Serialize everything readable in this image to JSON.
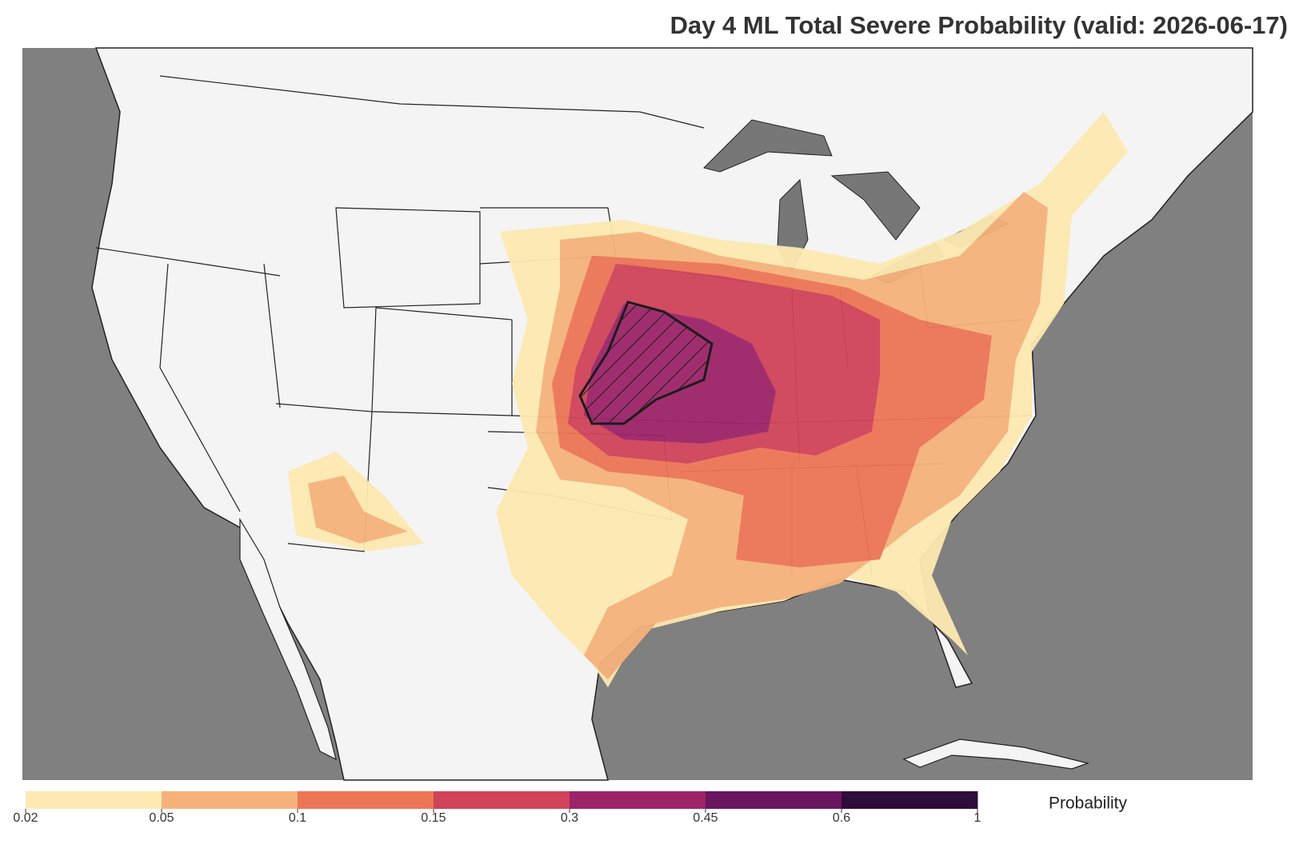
{
  "title": "Day 4 ML Total Severe Probability (valid: 2026-06-17)",
  "colorbar": {
    "label": "Probability",
    "ticks": [
      0.02,
      0.05,
      0.1,
      0.15,
      0.3,
      0.45,
      0.6,
      1
    ],
    "colors": [
      "#fde9b0",
      "#f6b27a",
      "#ec7556",
      "#d0435a",
      "#9c2468",
      "#68165f",
      "#2f0c3a"
    ]
  }
}
